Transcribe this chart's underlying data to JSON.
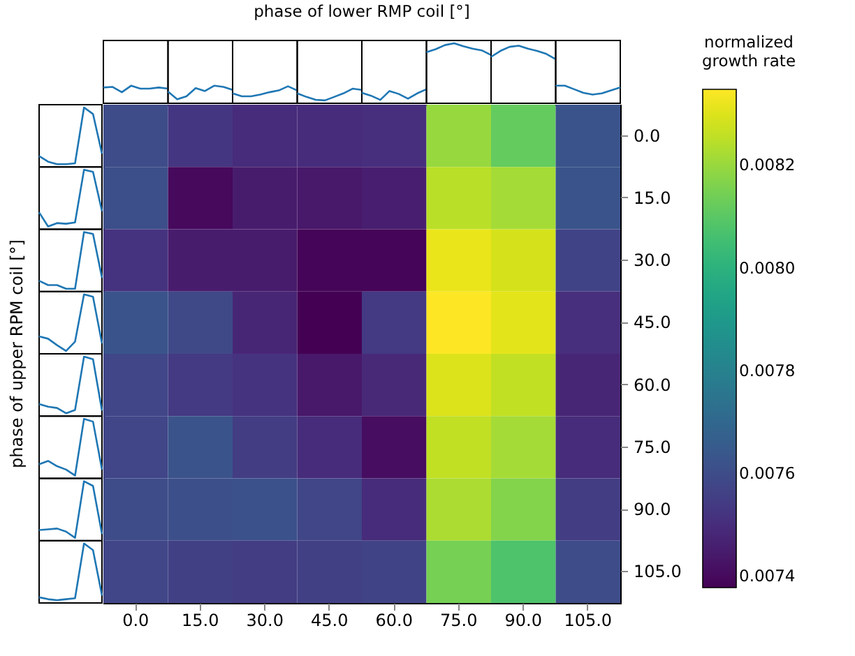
{
  "chart_data": {
    "type": "heatmap",
    "title": "phase of lower RMP coil [°]",
    "ylabel": "phase of upper RPM coil [°]",
    "clabel": "normalized growth rate",
    "categories": [
      "0.0",
      "15.0",
      "30.0",
      "45.0",
      "60.0",
      "75.0",
      "90.0",
      "105.0"
    ],
    "y_categories": [
      "0.0",
      "15.0",
      "30.0",
      "45.0",
      "60.0",
      "75.0",
      "90.0",
      "105.0"
    ],
    "cells": [
      [
        0.0076,
        0.00753,
        0.0075,
        0.0075,
        0.00751,
        0.0082,
        0.00812,
        0.00763
      ],
      [
        0.00761,
        0.0074,
        0.00745,
        0.00744,
        0.00746,
        0.00825,
        0.00822,
        0.00763
      ],
      [
        0.00752,
        0.00745,
        0.00745,
        0.00739,
        0.00739,
        0.00832,
        0.00829,
        0.00757
      ],
      [
        0.00763,
        0.00759,
        0.00748,
        0.00738,
        0.00754,
        0.00835,
        0.00831,
        0.00751
      ],
      [
        0.00758,
        0.00754,
        0.00752,
        0.00744,
        0.00749,
        0.0083,
        0.00826,
        0.00748
      ],
      [
        0.00758,
        0.00763,
        0.00755,
        0.0075,
        0.00741,
        0.00826,
        0.00822,
        0.0075
      ],
      [
        0.0076,
        0.00761,
        0.00762,
        0.00758,
        0.0075,
        0.00823,
        0.00817,
        0.00755
      ],
      [
        0.00758,
        0.00756,
        0.00755,
        0.00756,
        0.00757,
        0.00815,
        0.00808,
        0.0076
      ]
    ],
    "clim": [
      0.00738,
      0.00835
    ],
    "cticks": [
      0.0074,
      0.0076,
      0.0078,
      {
        "value": 0.008,
        "label": "0.0080"
      },
      0.0082
    ]
  }
}
